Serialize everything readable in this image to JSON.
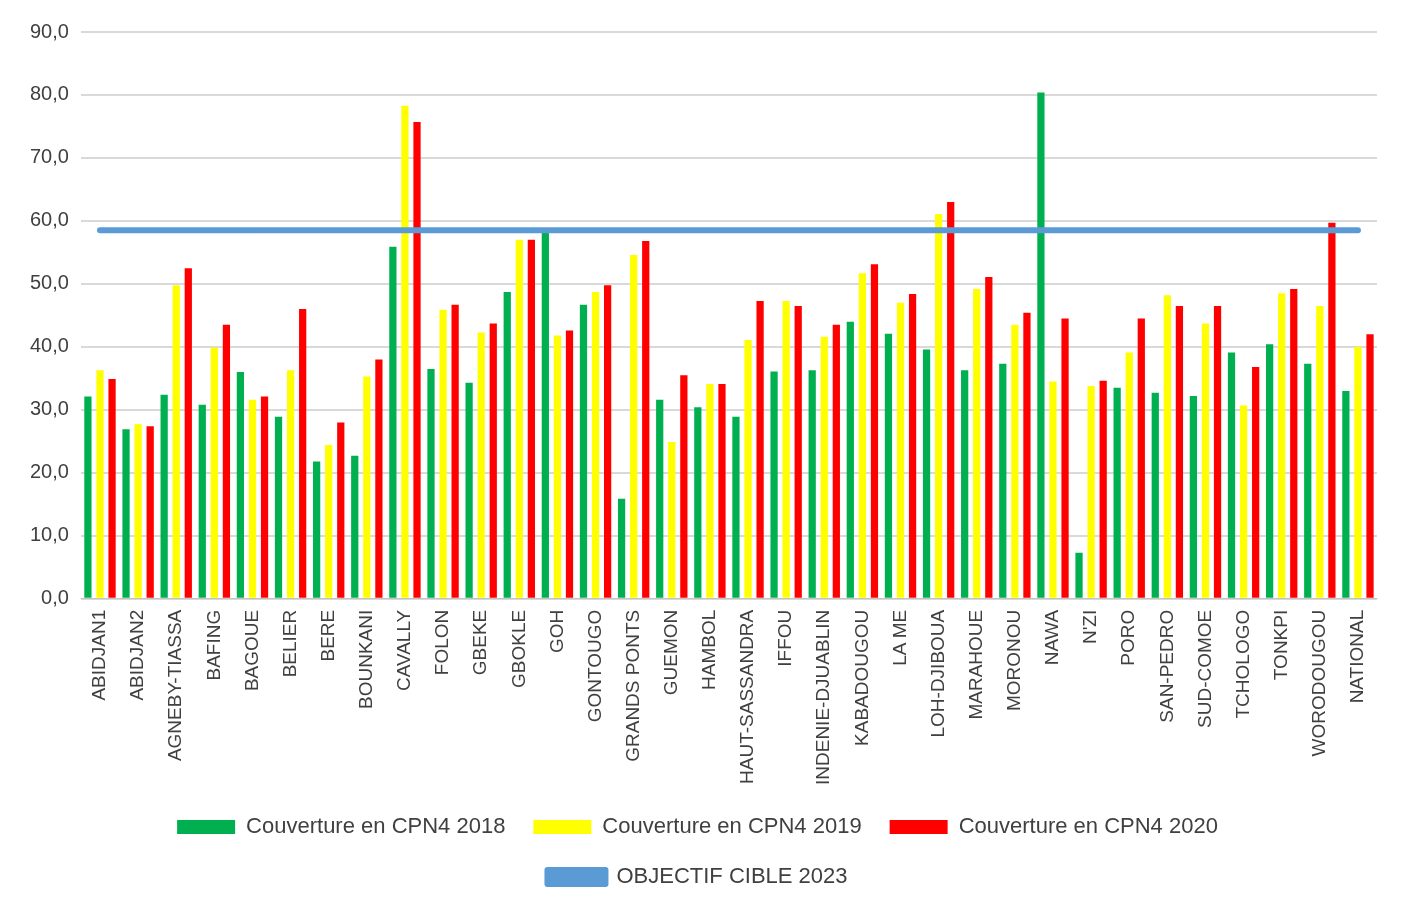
{
  "chart_data": {
    "type": "bar",
    "categories": [
      "ABIDJAN1",
      "ABIDJAN2",
      "AGNEBY-TIASSA",
      "BAFING",
      "BAGOUE",
      "BELIER",
      "BERE",
      "BOUNKANI",
      "CAVALLY",
      "FOLON",
      "GBEKE",
      "GBOKLE",
      "GOH",
      "GONTOUGO",
      "GRANDS PONTS",
      "GUEMON",
      "HAMBOL",
      "HAUT-SASSANDRA",
      "IFFOU",
      "INDENIE-DJUABLIN",
      "KABADOUGOU",
      "LA ME",
      "LOH-DJIBOUA",
      "MARAHOUE",
      "MORONOU",
      "NAWA",
      "N'ZI",
      "PORO",
      "SAN-PEDRO",
      "SUD-COMOE",
      "TCHOLOGO",
      "TONKPI",
      "WORODOUGOU",
      "NATIONAL"
    ],
    "series": [
      {
        "name": "Couverture en CPN4 2018",
        "color": "#00b050",
        "values": [
          32.1,
          26.9,
          32.4,
          30.8,
          36.0,
          28.9,
          21.8,
          22.7,
          55.9,
          36.5,
          34.3,
          48.7,
          58.5,
          46.7,
          15.9,
          31.6,
          30.4,
          28.9,
          36.1,
          36.3,
          44.0,
          42.1,
          39.6,
          36.3,
          37.3,
          80.4,
          7.3,
          33.5,
          32.7,
          32.2,
          39.1,
          40.4,
          37.3,
          33.0
        ]
      },
      {
        "name": "Couverture en CPN4 2019",
        "color": "#ffff00",
        "values": [
          36.3,
          27.7,
          49.8,
          39.9,
          31.6,
          36.3,
          24.4,
          35.3,
          78.3,
          45.9,
          42.3,
          57.0,
          41.8,
          48.7,
          54.6,
          24.9,
          34.1,
          41.1,
          47.3,
          41.6,
          51.7,
          47.0,
          61.1,
          49.2,
          43.5,
          34.5,
          33.8,
          39.1,
          48.2,
          43.7,
          30.7,
          48.5,
          46.5,
          40.0
        ]
      },
      {
        "name": "Couverture en CPN4 2020",
        "color": "#ff0000",
        "values": [
          34.9,
          27.4,
          52.5,
          43.5,
          32.1,
          46.0,
          28.0,
          38.0,
          75.7,
          46.7,
          43.7,
          57.0,
          42.6,
          49.8,
          56.8,
          35.5,
          34.1,
          47.3,
          46.5,
          43.5,
          53.1,
          48.4,
          63.0,
          51.1,
          45.4,
          44.5,
          34.6,
          44.5,
          46.5,
          46.5,
          36.8,
          49.2,
          59.7,
          42.0
        ]
      },
      {
        "name": "OBJECTIF CIBLE 2023",
        "type": "line",
        "color": "#5b9bd5",
        "marker": "none",
        "values": [
          58.5,
          58.5,
          58.5,
          58.5,
          58.5,
          58.5,
          58.5,
          58.5,
          58.5,
          58.5,
          58.5,
          58.5,
          58.5,
          58.5,
          58.5,
          58.5,
          58.5,
          58.5,
          58.5,
          58.5,
          58.5,
          58.5,
          58.5,
          58.5,
          58.5,
          58.5,
          58.5,
          58.5,
          58.5,
          58.5,
          58.5,
          58.5,
          58.5,
          58.5
        ]
      }
    ],
    "ylim": [
      0,
      90
    ],
    "yticks": [
      {
        "value": 0,
        "label": "0,0"
      },
      {
        "value": 10,
        "label": "10,0"
      },
      {
        "value": 20,
        "label": "20,0"
      },
      {
        "value": 30,
        "label": "30,0"
      },
      {
        "value": 40,
        "label": "40,0"
      },
      {
        "value": 50,
        "label": "50,0"
      },
      {
        "value": 60,
        "label": "60,0"
      },
      {
        "value": 70,
        "label": "70,0"
      },
      {
        "value": 80,
        "label": "80,0"
      },
      {
        "value": 90,
        "label": "90,0"
      }
    ],
    "grid": "y",
    "legend": "bottom"
  }
}
